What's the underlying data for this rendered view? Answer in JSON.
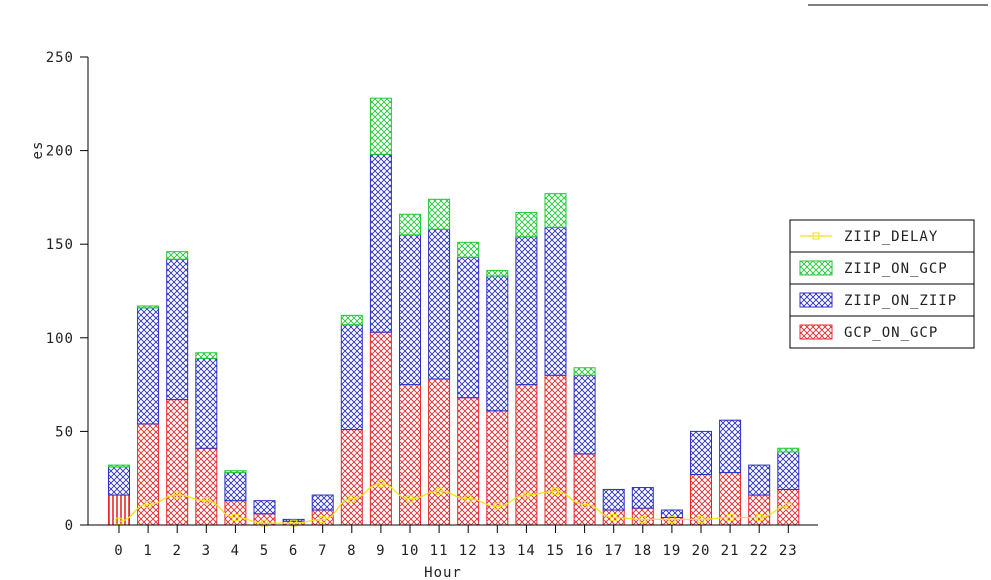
{
  "chart_data": {
    "type": "bar",
    "stacked": true,
    "xlabel": "Hour",
    "ylabel": "es",
    "ylim": [
      0,
      250
    ],
    "yticks": [
      0,
      50,
      100,
      150,
      200,
      250
    ],
    "categories": [
      "0",
      "1",
      "2",
      "3",
      "4",
      "5",
      "6",
      "7",
      "8",
      "9",
      "10",
      "11",
      "12",
      "13",
      "14",
      "15",
      "16",
      "17",
      "18",
      "19",
      "20",
      "21",
      "22",
      "23"
    ],
    "grid": false,
    "legend_position": "right",
    "series": [
      {
        "name": "GCP_ON_GCP",
        "kind": "bar",
        "color": "#e8282d",
        "values": [
          16,
          54,
          67,
          41,
          13,
          6,
          2,
          8,
          51,
          103,
          75,
          78,
          68,
          61,
          75,
          80,
          38,
          8,
          9,
          4,
          27,
          28,
          16,
          19
        ]
      },
      {
        "name": "ZIIP_ON_ZIIP",
        "kind": "bar",
        "color": "#2a2fc7",
        "values": [
          15,
          62,
          75,
          48,
          15,
          7,
          1,
          8,
          56,
          95,
          80,
          80,
          75,
          72,
          79,
          79,
          42,
          11,
          11,
          4,
          23,
          28,
          16,
          20
        ]
      },
      {
        "name": "ZIIP_ON_GCP",
        "kind": "bar",
        "color": "#22c736",
        "values": [
          1,
          1,
          4,
          3,
          1,
          0,
          0,
          0,
          5,
          30,
          11,
          16,
          8,
          3,
          13,
          18,
          4,
          0,
          0,
          0,
          0,
          0,
          0,
          2
        ]
      },
      {
        "name": "ZIIP_DELAY",
        "kind": "line",
        "color": "#f2e21a",
        "values": [
          2,
          11,
          16,
          13,
          4,
          1,
          1,
          3,
          14,
          22,
          14,
          18,
          14,
          10,
          16,
          18,
          11,
          4,
          3,
          3,
          3,
          4,
          4,
          10
        ]
      }
    ],
    "legend": [
      {
        "label": "ZIIP_DELAY",
        "kind": "line",
        "color": "#f2e21a"
      },
      {
        "label": "ZIIP_ON_GCP",
        "kind": "bar",
        "color": "#22c736"
      },
      {
        "label": "ZIIP_ON_ZIIP",
        "kind": "bar",
        "color": "#2a2fc7"
      },
      {
        "label": "GCP_ON_GCP",
        "kind": "bar",
        "color": "#e8282d"
      }
    ]
  }
}
